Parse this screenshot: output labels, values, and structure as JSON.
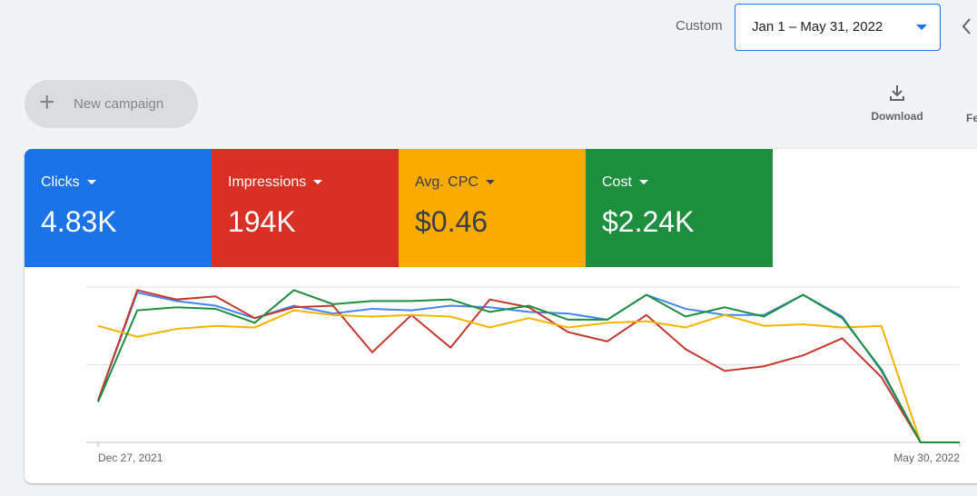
{
  "toolbar": {
    "date_label": "Custom",
    "date_range": "Jan 1 – May 31, 2022",
    "new_campaign": "New campaign",
    "download": "Download",
    "feedback": "Fe"
  },
  "scorecards": [
    {
      "name": "Clicks",
      "value": "4.83K",
      "color": "#1a73e8"
    },
    {
      "name": "Impressions",
      "value": "194K",
      "color": "#d93025"
    },
    {
      "name": "Avg. CPC",
      "value": "$0.46",
      "color": "#f9ab00"
    },
    {
      "name": "Cost",
      "value": "$2.24K",
      "color": "#1e8e3e"
    }
  ],
  "chart_data": {
    "type": "line",
    "categories": [
      "Dec 27, 2021",
      null,
      null,
      null,
      null,
      null,
      null,
      null,
      null,
      null,
      null,
      null,
      null,
      null,
      null,
      null,
      null,
      null,
      null,
      null,
      null,
      null,
      "May 30, 2022"
    ],
    "series": [
      {
        "name": "Clicks",
        "color": "#4285f4",
        "values": [
          27,
          96.5,
          91,
          88,
          80,
          88,
          83,
          86,
          85,
          88,
          87,
          84,
          83,
          79,
          95,
          86,
          82,
          82,
          95,
          81,
          46,
          0,
          0
        ]
      },
      {
        "name": "Impressions",
        "color": "#c5392b",
        "values": [
          27,
          98,
          92,
          94,
          80,
          87,
          88,
          58,
          82,
          61,
          92,
          87,
          71,
          65,
          82,
          60,
          46,
          49,
          56,
          67,
          42,
          0,
          0
        ]
      },
      {
        "name": "Avg. CPC",
        "color": "#f4b400",
        "values": [
          75,
          68,
          73,
          75,
          74,
          85,
          82,
          81,
          82,
          81,
          74,
          80,
          74,
          77,
          78,
          74,
          82,
          75,
          76,
          74,
          75,
          0,
          0
        ]
      },
      {
        "name": "Cost",
        "color": "#1e8e3e",
        "values": [
          26,
          85,
          87,
          86,
          77,
          98,
          89,
          91,
          91,
          92,
          84,
          88,
          79,
          79,
          95,
          81,
          87,
          81,
          95,
          80,
          47,
          0,
          0
        ]
      }
    ],
    "ylim": [
      0,
      100
    ],
    "yticks": [
      0,
      50,
      100
    ],
    "grid": true
  }
}
